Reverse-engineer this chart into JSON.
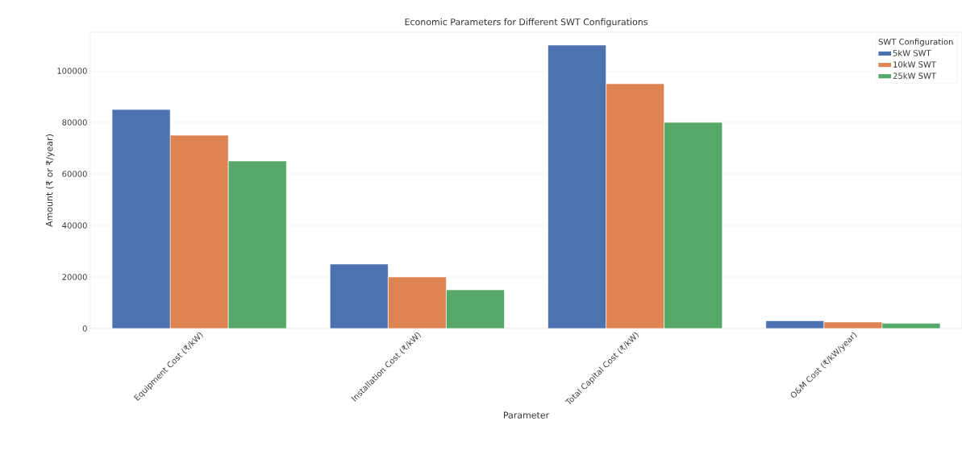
{
  "chart_data": {
    "type": "bar",
    "title": "Economic Parameters for Different SWT Configurations",
    "xlabel": "Parameter",
    "ylabel": "Amount (₹ or ₹/year)",
    "legend_title": "SWT Configuration",
    "categories": [
      "Equipment Cost (₹/kW)",
      "Installation Cost (₹/kW)",
      "Total Capital Cost (₹/kW)",
      "O&M Cost (₹/kW/year)"
    ],
    "series": [
      {
        "name": "5kW SWT",
        "color": "#4c72b0",
        "values": [
          85000,
          25000,
          110000,
          3000
        ]
      },
      {
        "name": "10kW SWT",
        "color": "#dd8452",
        "values": [
          75000,
          20000,
          95000,
          2500
        ]
      },
      {
        "name": "25kW SWT",
        "color": "#55a868",
        "values": [
          65000,
          15000,
          80000,
          2000
        ]
      }
    ],
    "ylim": [
      0,
      115000
    ],
    "yticks": [
      0,
      20000,
      40000,
      60000,
      80000,
      100000
    ],
    "grid": "y",
    "legend": "top right"
  }
}
